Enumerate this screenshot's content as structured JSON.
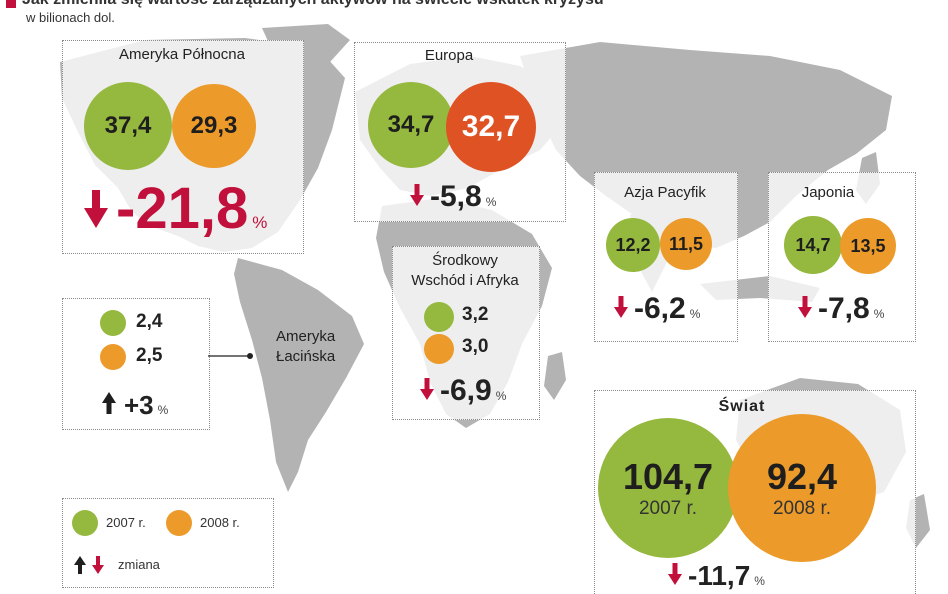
{
  "title": "Jak zmieniła się wartość zarządzanych aktywów na świecie wskutek kryzysu",
  "subtitle": "w bilionach dol.",
  "colors": {
    "y2007": "#95b83e",
    "y2008": "#ec9a2a",
    "europe_2008": "#de5224",
    "decrease": "#c0103b",
    "increase": "#1e1e1e",
    "map": "#b3b3b3"
  },
  "chart_data": {
    "type": "bubble-map",
    "unit": "w bilionach dol.",
    "years": [
      "2007 r.",
      "2008 r."
    ],
    "regions": [
      {
        "name": "Ameryka Północna",
        "v2007": "37,4",
        "v2008": "29,3",
        "change": "-21,8",
        "direction": "down"
      },
      {
        "name": "Europa",
        "v2007": "34,7",
        "v2008": "32,7",
        "change": "-5,8",
        "direction": "down"
      },
      {
        "name": "Środkowy Wschód i Afryka",
        "v2007": "3,2",
        "v2008": "3,0",
        "change": "-6,9",
        "direction": "down"
      },
      {
        "name": "Azja Pacyfik",
        "v2007": "12,2",
        "v2008": "11,5",
        "change": "-6,2",
        "direction": "down"
      },
      {
        "name": "Japonia",
        "v2007": "14,7",
        "v2008": "13,5",
        "change": "-7,8",
        "direction": "down"
      },
      {
        "name": "Ameryka Łacińska",
        "v2007": "2,4",
        "v2008": "2,5",
        "change": "+3",
        "direction": "up"
      },
      {
        "name": "Świat",
        "v2007": "104,7",
        "v2008": "92,4",
        "change": "-11,7",
        "direction": "down"
      }
    ]
  },
  "labels": {
    "north_america": "Ameryka Północna",
    "europe": "Europa",
    "mideast_line1": "Środkowy",
    "mideast_line2": "Wschód i Afryka",
    "asia": "Azja Pacyfik",
    "japan": "Japonia",
    "latam_line1": "Ameryka",
    "latam_line2": "Łacińska",
    "world": "Świat",
    "percent": "%"
  },
  "legend": {
    "y2007": "2007 r.",
    "y2008": "2008 r.",
    "change": "zmiana"
  }
}
